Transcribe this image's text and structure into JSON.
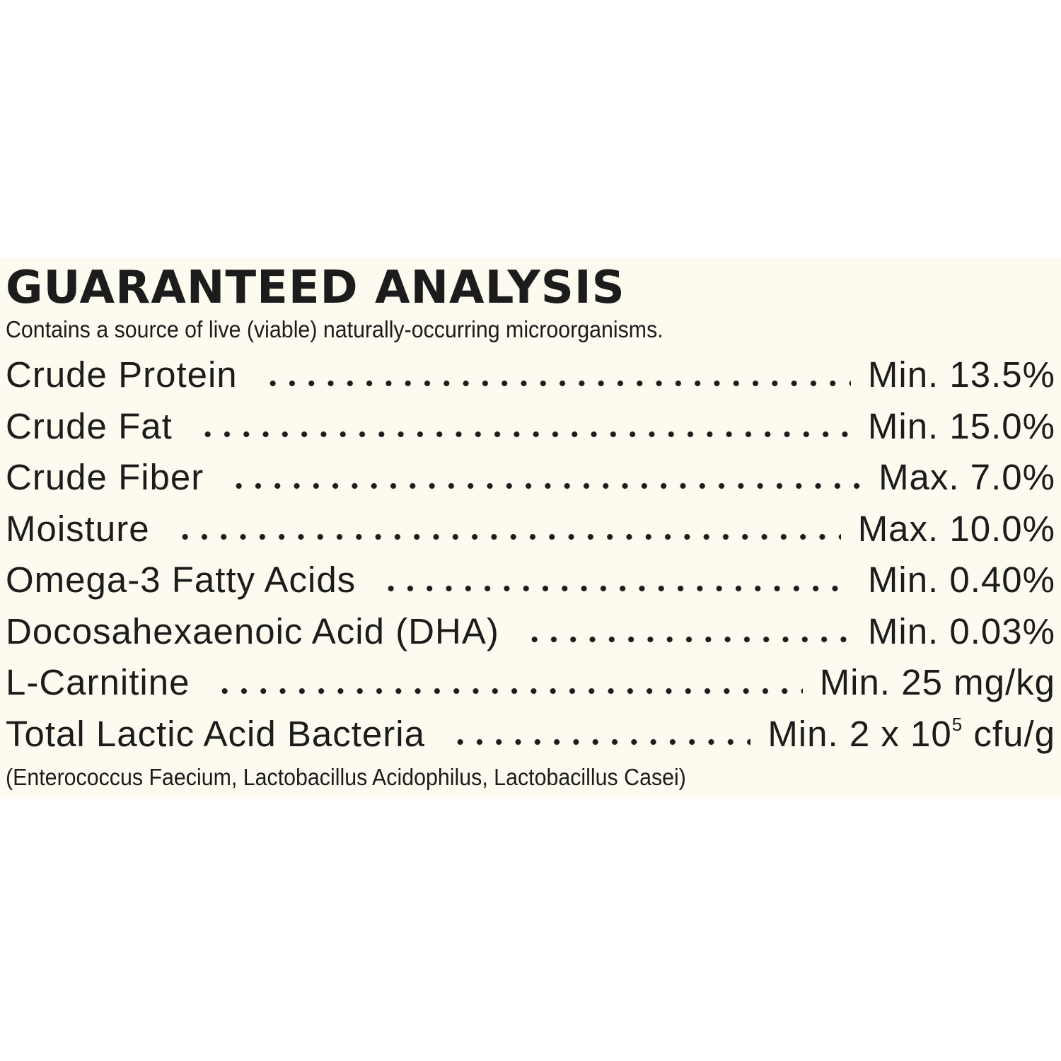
{
  "label": {
    "title": "GUARANTEED ANALYSIS",
    "subtitle": "Contains a source of live (viable) naturally-occurring microorganisms.",
    "rows": [
      {
        "nutrient": "Crude Protein",
        "amount": "Min. 13.5%"
      },
      {
        "nutrient": "Crude Fat",
        "amount": "Min. 15.0%"
      },
      {
        "nutrient": "Crude Fiber",
        "amount": "Max. 7.0%"
      },
      {
        "nutrient": "Moisture",
        "amount": "Max. 10.0%"
      },
      {
        "nutrient": "Omega-3 Fatty Acids",
        "amount": "Min. 0.40%"
      },
      {
        "nutrient": "Docosahexaenoic Acid (DHA)",
        "amount": "Min. 0.03%"
      },
      {
        "nutrient": "L-Carnitine",
        "amount": "Min. 25 mg/kg"
      },
      {
        "nutrient": "Total Lactic Acid Bacteria",
        "amount": "Min. 2 x 10",
        "amount_exponent": "5",
        "amount_unit": " cfu/g"
      }
    ],
    "footnote": "(Enterococcus Faecium, Lactobacillus Acidophilus, Lactobacillus Casei)"
  },
  "colors": {
    "panel_background": "#fdfbf0",
    "text": "#1c1c1c",
    "page_background": "#ffffff"
  }
}
